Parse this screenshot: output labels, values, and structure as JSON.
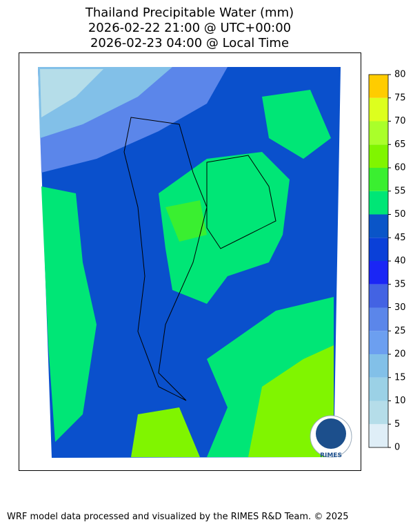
{
  "title": [
    "Thailand Precipitable Water (mm)",
    "2026-02-22 21:00 @ UTC+00:00",
    "2026-02-23 04:00 @ Local Time"
  ],
  "colorbar": {
    "lim": [
      0,
      80
    ],
    "ticks": [
      0,
      5,
      10,
      15,
      20,
      25,
      30,
      35,
      40,
      45,
      50,
      55,
      60,
      65,
      70,
      75,
      80
    ],
    "colors": [
      "#dfeef7",
      "#b5dde9",
      "#9bd1e6",
      "#82c0e8",
      "#6c9ff0",
      "#5b86ea",
      "#4363e3",
      "#1a26f5",
      "#0a40d8",
      "#0a55c8",
      "#00e676",
      "#3aef30",
      "#80f500",
      "#aaff2a",
      "#ddff1e",
      "#ffcc00"
    ]
  },
  "logo": "RIMES",
  "footer": "WRF model data processed and visualized by the RIMES R&D Team. © 2025"
}
